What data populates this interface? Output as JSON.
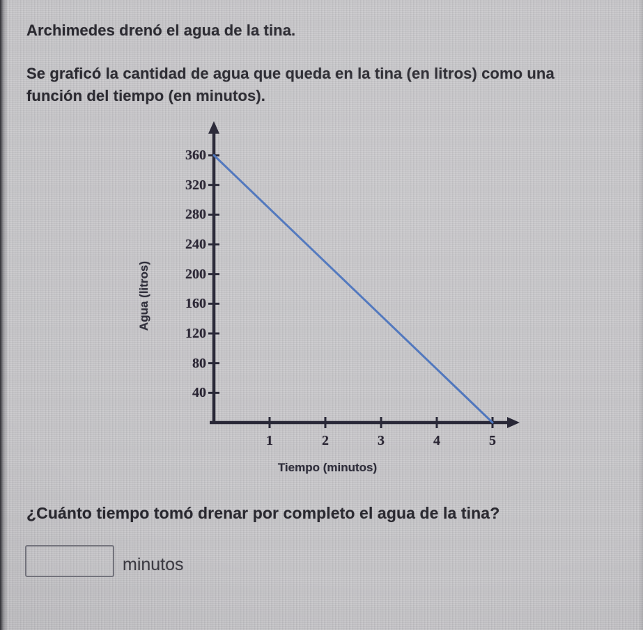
{
  "problem": {
    "line1": "Archimedes drenó el agua de la tina.",
    "line2": "Se graficó la cantidad de agua que queda en la tina (en litros) como una función del tiempo (en minutos)."
  },
  "question": {
    "text": "¿Cuánto tiempo tomó drenar por completo el agua de la tina?",
    "input_value": "",
    "unit_label": "minutos"
  },
  "chart_data": {
    "type": "line",
    "title": "",
    "xlabel": "Tiempo (minutos)",
    "ylabel": "Agua (litros)",
    "x_ticks": [
      1,
      2,
      3,
      4,
      5
    ],
    "y_ticks": [
      40,
      80,
      120,
      160,
      200,
      240,
      280,
      320,
      360
    ],
    "xlim": [
      0,
      5.5
    ],
    "ylim": [
      0,
      400
    ],
    "grid": false,
    "legend": false,
    "series": [
      {
        "name": "agua que queda en la tina",
        "points": [
          [
            0,
            360
          ],
          [
            5,
            0
          ]
        ]
      }
    ],
    "line_color": "#4a72bb",
    "axis_color": "#232232",
    "tick_label_color": "#241f2e"
  },
  "colors": {
    "background": "#c6c5c8",
    "text": "#28272e",
    "input_border": "#75757e"
  }
}
